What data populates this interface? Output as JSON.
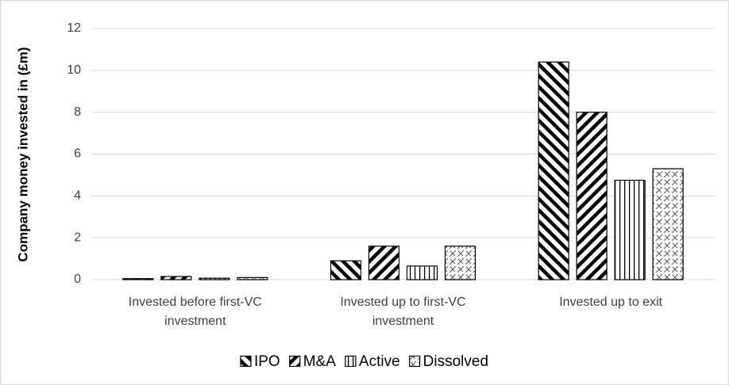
{
  "chart_data": {
    "type": "bar",
    "y_label": "Company money invested in (£m)",
    "categories": [
      "Invested before first-VC investment",
      "Invested up to first-VC investment",
      "Invested up to exit"
    ],
    "series": [
      {
        "name": "IPO",
        "color": "#000000",
        "pattern": "back-diagonal",
        "values": [
          0.05,
          0.9,
          10.4
        ]
      },
      {
        "name": "M&A",
        "color": "#000000",
        "pattern": "forward-diagonal",
        "values": [
          0.15,
          1.6,
          8.0
        ]
      },
      {
        "name": "Active",
        "color": "#000000",
        "pattern": "vertical",
        "values": [
          0.07,
          0.65,
          4.75
        ]
      },
      {
        "name": "Dissolved",
        "color": "#000000",
        "pattern": "dashed-diagonal",
        "values": [
          0.1,
          1.6,
          5.3
        ]
      }
    ],
    "ylim": [
      0,
      12
    ],
    "yticks": [
      0,
      2,
      4,
      6,
      8,
      10,
      12
    ],
    "grid": true,
    "legend": "bottom"
  }
}
